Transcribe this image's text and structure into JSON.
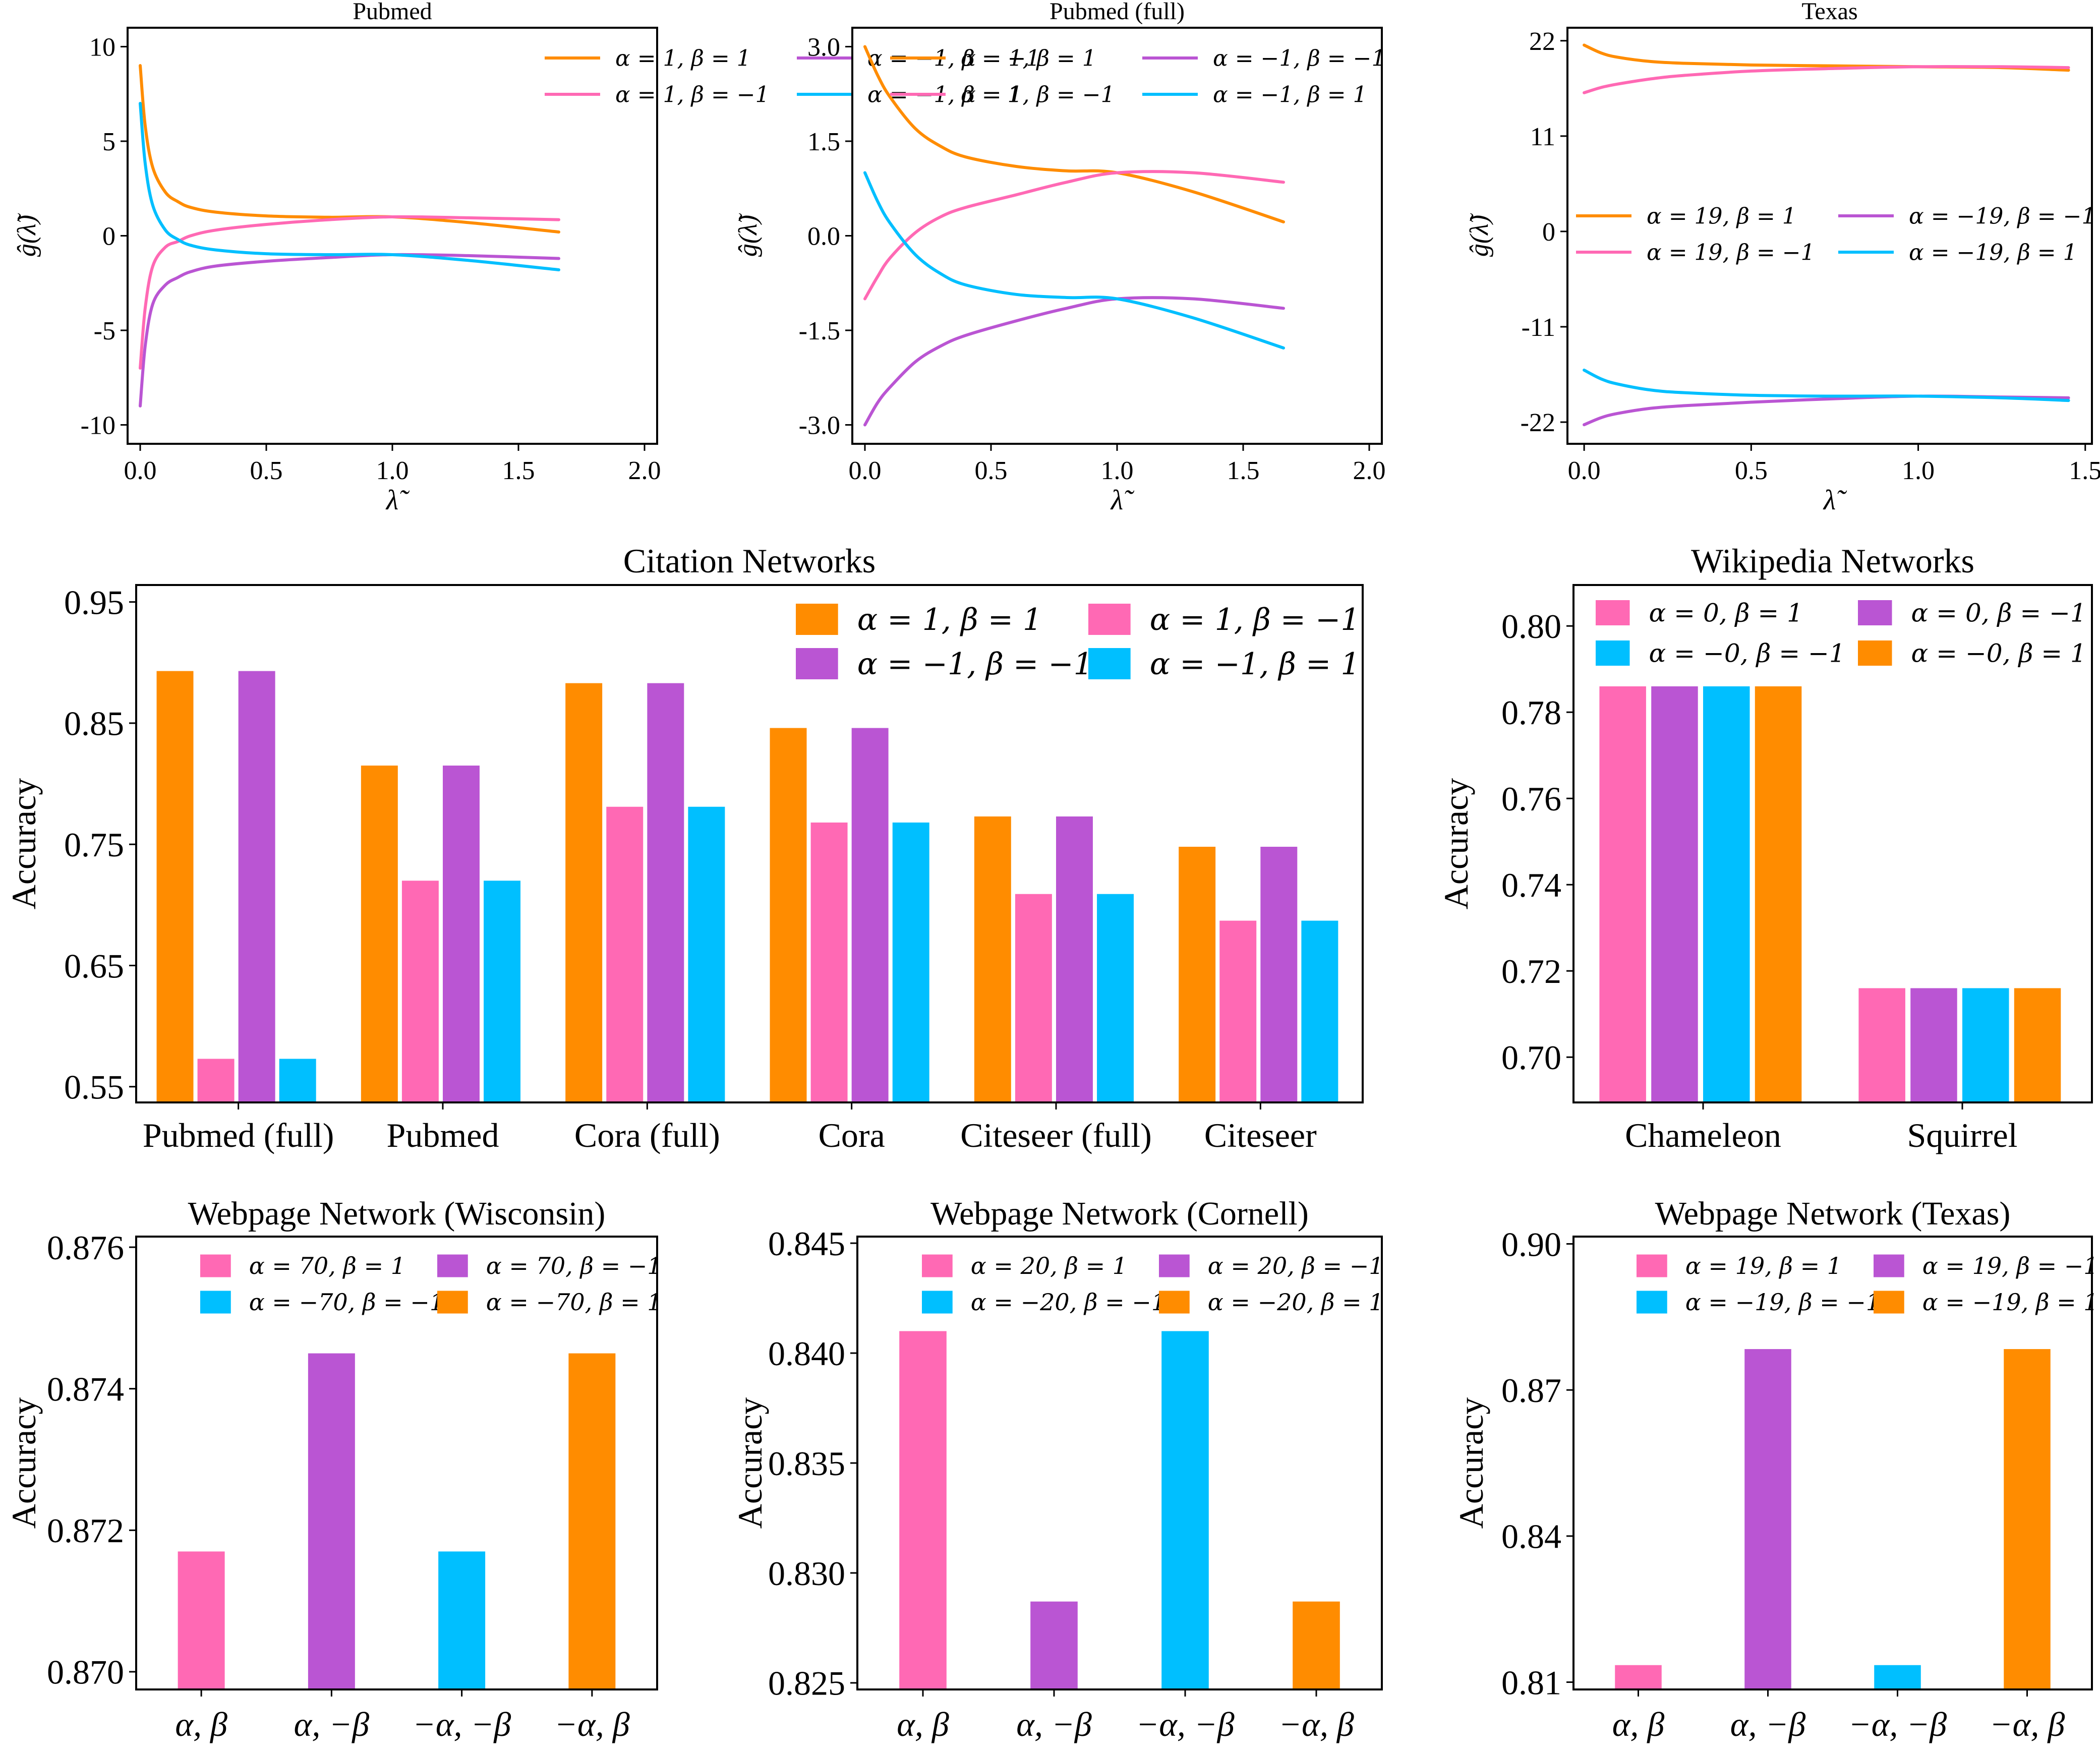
{
  "chart_data": [
    {
      "id": "pubmed-filter",
      "type": "line",
      "title": "Pubmed",
      "xlabel": "λ̃",
      "ylabel": "ĝ(λ̃)",
      "xlim": [
        -0.05,
        2.05
      ],
      "ylim": [
        -11,
        11
      ],
      "xticks": [
        0,
        0.5,
        1,
        1.5,
        2
      ],
      "xtick_labels": [
        "0.0",
        "0.5",
        "1.0",
        "1.5",
        "2.0"
      ],
      "yticks": [
        10,
        5,
        0,
        -5,
        -10
      ],
      "ytick_labels": [
        "10",
        "5",
        "0",
        "-5",
        "-10"
      ],
      "legend": "upper right, 2 columns",
      "grid": false,
      "series": [
        {
          "name": "α = 1, β = 1",
          "color": "#FF8C00",
          "x": [
            0,
            0.02,
            0.05,
            0.1,
            0.15,
            0.2,
            0.3,
            0.5,
            0.75,
            1.0,
            1.3,
            1.66
          ],
          "y": [
            9.0,
            5.8,
            3.6,
            2.3,
            1.8,
            1.5,
            1.25,
            1.05,
            0.98,
            1.0,
            0.7,
            0.2
          ]
        },
        {
          "name": "α = −1, β = −1",
          "color": "#BA55D3",
          "x": [
            0,
            0.02,
            0.05,
            0.1,
            0.15,
            0.2,
            0.3,
            0.5,
            0.75,
            1.0,
            1.3,
            1.66
          ],
          "y": [
            -9.0,
            -5.8,
            -3.6,
            -2.6,
            -2.2,
            -1.9,
            -1.6,
            -1.35,
            -1.15,
            -1.0,
            -1.05,
            -1.2
          ]
        },
        {
          "name": "α = 1, β = −1",
          "color": "#FF69B4",
          "x": [
            0,
            0.02,
            0.05,
            0.1,
            0.15,
            0.2,
            0.3,
            0.5,
            0.75,
            1.0,
            1.3,
            1.66
          ],
          "y": [
            -7.0,
            -3.8,
            -1.6,
            -0.6,
            -0.3,
            0.0,
            0.3,
            0.6,
            0.85,
            1.0,
            0.95,
            0.85
          ]
        },
        {
          "name": "α = −1, β = 1",
          "color": "#00BFFF",
          "x": [
            0,
            0.02,
            0.05,
            0.1,
            0.15,
            0.2,
            0.3,
            0.5,
            0.75,
            1.0,
            1.3,
            1.66
          ],
          "y": [
            7.0,
            3.8,
            1.6,
            0.3,
            -0.2,
            -0.5,
            -0.75,
            -0.95,
            -1.0,
            -1.0,
            -1.3,
            -1.8
          ]
        }
      ]
    },
    {
      "id": "pubmed-full-filter",
      "type": "line",
      "title": "Pubmed (full)",
      "xlabel": "λ̃",
      "ylabel": "ĝ(λ̃)",
      "xlim": [
        -0.05,
        2.05
      ],
      "ylim": [
        -3.3,
        3.3
      ],
      "xticks": [
        0,
        0.5,
        1,
        1.5,
        2
      ],
      "xtick_labels": [
        "0.0",
        "0.5",
        "1.0",
        "1.5",
        "2.0"
      ],
      "yticks": [
        3.0,
        1.5,
        0.0,
        -1.5,
        -3.0
      ],
      "ytick_labels": [
        "3.0",
        "1.5",
        "0.0",
        "-1.5",
        "-3.0"
      ],
      "legend": "upper right, 2 columns",
      "grid": false,
      "series": [
        {
          "name": "α = 1, β = 1",
          "color": "#FF8C00",
          "x": [
            0,
            0.05,
            0.1,
            0.2,
            0.3,
            0.4,
            0.6,
            0.8,
            1.0,
            1.3,
            1.66
          ],
          "y": [
            3.0,
            2.55,
            2.2,
            1.7,
            1.42,
            1.25,
            1.1,
            1.03,
            1.0,
            0.7,
            0.22
          ]
        },
        {
          "name": "α = −1, β = −1",
          "color": "#BA55D3",
          "x": [
            0,
            0.05,
            0.1,
            0.2,
            0.3,
            0.4,
            0.6,
            0.8,
            1.0,
            1.3,
            1.66
          ],
          "y": [
            -3.0,
            -2.65,
            -2.4,
            -2.0,
            -1.75,
            -1.58,
            -1.35,
            -1.15,
            -1.0,
            -1.0,
            -1.15
          ]
        },
        {
          "name": "α = 1, β = −1",
          "color": "#FF69B4",
          "x": [
            0,
            0.05,
            0.1,
            0.2,
            0.3,
            0.4,
            0.6,
            0.8,
            1.0,
            1.3,
            1.66
          ],
          "y": [
            -1.0,
            -0.65,
            -0.35,
            0.05,
            0.3,
            0.45,
            0.65,
            0.85,
            1.0,
            1.0,
            0.85
          ]
        },
        {
          "name": "α = −1, β = 1",
          "color": "#00BFFF",
          "x": [
            0,
            0.05,
            0.1,
            0.2,
            0.3,
            0.4,
            0.6,
            0.8,
            1.0,
            1.3,
            1.66
          ],
          "y": [
            1.0,
            0.55,
            0.2,
            -0.3,
            -0.6,
            -0.78,
            -0.93,
            -0.98,
            -1.0,
            -1.3,
            -1.78
          ]
        }
      ]
    },
    {
      "id": "texas-filter",
      "type": "line",
      "title": "Texas",
      "xlabel": "λ̃",
      "ylabel": "ĝ(λ̃)",
      "xlim": [
        -0.05,
        1.52
      ],
      "ylim": [
        -24.5,
        23.5
      ],
      "xticks": [
        0,
        0.5,
        1,
        1.5
      ],
      "xtick_labels": [
        "0.0",
        "0.5",
        "1.0",
        "1.5"
      ],
      "yticks": [
        22,
        11,
        0,
        -11,
        -22
      ],
      "ytick_labels": [
        "22",
        "11",
        "0",
        "-11",
        "-22"
      ],
      "legend": "center right, 2 columns",
      "grid": false,
      "series": [
        {
          "name": "α = 19, β = 1",
          "color": "#FF8C00",
          "x": [
            0,
            0.05,
            0.1,
            0.2,
            0.3,
            0.5,
            0.75,
            1.0,
            1.25,
            1.45
          ],
          "y": [
            21.5,
            20.6,
            20.1,
            19.6,
            19.4,
            19.2,
            19.1,
            19.0,
            18.9,
            18.6
          ]
        },
        {
          "name": "α = −19, β = −1",
          "color": "#BA55D3",
          "x": [
            0,
            0.05,
            0.1,
            0.2,
            0.3,
            0.5,
            0.75,
            1.0,
            1.25,
            1.45
          ],
          "y": [
            -22.3,
            -21.5,
            -21.0,
            -20.4,
            -20.1,
            -19.7,
            -19.3,
            -19.0,
            -19.1,
            -19.2
          ]
        },
        {
          "name": "α = 19, β = −1",
          "color": "#FF69B4",
          "x": [
            0,
            0.05,
            0.1,
            0.2,
            0.3,
            0.5,
            0.75,
            1.0,
            1.25,
            1.45
          ],
          "y": [
            16.0,
            16.6,
            17.0,
            17.6,
            18.0,
            18.5,
            18.8,
            19.0,
            19.0,
            18.9
          ]
        },
        {
          "name": "α = −19, β = 1",
          "color": "#00BFFF",
          "x": [
            0,
            0.05,
            0.1,
            0.2,
            0.3,
            0.5,
            0.75,
            1.0,
            1.25,
            1.45
          ],
          "y": [
            -16.0,
            -17.0,
            -17.6,
            -18.3,
            -18.6,
            -18.9,
            -19.0,
            -19.0,
            -19.2,
            -19.5
          ]
        }
      ]
    },
    {
      "id": "citation-networks",
      "type": "bar",
      "title": "Citation Networks",
      "xlabel": "",
      "ylabel": "Accuracy",
      "ylim": [
        0.537,
        0.964
      ],
      "yticks": [
        0.95,
        0.85,
        0.75,
        0.65,
        0.55
      ],
      "ytick_labels": [
        "0.95",
        "0.85",
        "0.75",
        "0.65",
        "0.55"
      ],
      "legend": "upper right, 2 columns",
      "grid": false,
      "categories": [
        "Pubmed (full)",
        "Pubmed",
        "Cora (full)",
        "Cora",
        "Citeseer (full)",
        "Citeseer"
      ],
      "series": [
        {
          "name": "α = 1, β = 1",
          "color": "#FF8C00",
          "values": [
            0.893,
            0.815,
            0.883,
            0.846,
            0.773,
            0.748
          ]
        },
        {
          "name": "α = 1, β = −1",
          "color": "#FF69B4",
          "values": [
            0.573,
            0.72,
            0.781,
            0.768,
            0.709,
            0.687
          ]
        },
        {
          "name": "α = −1, β = −1",
          "color": "#BA55D3",
          "values": [
            0.893,
            0.815,
            0.883,
            0.846,
            0.773,
            0.748
          ]
        },
        {
          "name": "α = −1, β = 1",
          "color": "#00BFFF",
          "values": [
            0.573,
            0.72,
            0.781,
            0.768,
            0.709,
            0.687
          ]
        }
      ],
      "legend_order": [
        0,
        2,
        1,
        3
      ]
    },
    {
      "id": "wikipedia-networks",
      "type": "bar",
      "title": "Wikipedia Networks",
      "xlabel": "",
      "ylabel": "Accuracy",
      "ylim": [
        0.6895,
        0.8095
      ],
      "yticks": [
        0.8,
        0.78,
        0.76,
        0.74,
        0.72,
        0.7
      ],
      "ytick_labels": [
        "0.80",
        "0.78",
        "0.76",
        "0.74",
        "0.72",
        "0.70"
      ],
      "legend": "upper right, 2 columns",
      "grid": false,
      "categories": [
        "Chameleon",
        "Squirrel"
      ],
      "series": [
        {
          "name": "α = 0, β = 1",
          "color": "#FF69B4",
          "values": [
            0.786,
            0.716
          ]
        },
        {
          "name": "α = 0, β = −1",
          "color": "#BA55D3",
          "values": [
            0.786,
            0.716
          ]
        },
        {
          "name": "α = −0, β = −1",
          "color": "#00BFFF",
          "values": [
            0.786,
            0.716
          ]
        },
        {
          "name": "α = −0, β = 1",
          "color": "#FF8C00",
          "values": [
            0.786,
            0.716
          ]
        }
      ],
      "legend_order": [
        0,
        2,
        1,
        3
      ]
    },
    {
      "id": "webpage-wisconsin",
      "type": "bar",
      "title": "Webpage Network (Wisconsin)",
      "xlabel": "",
      "ylabel": "Accuracy",
      "ylim": [
        0.86975,
        0.87615
      ],
      "yticks": [
        0.876,
        0.874,
        0.872,
        0.87
      ],
      "ytick_labels": [
        "0.876",
        "0.874",
        "0.872",
        "0.870"
      ],
      "legend": "upper right, 2 columns",
      "grid": false,
      "categories": [
        "α, β",
        "α, −β",
        "−α, −β",
        "−α, β"
      ],
      "colors": [
        "#FF69B4",
        "#BA55D3",
        "#00BFFF",
        "#FF8C00"
      ],
      "values": [
        0.8717,
        0.8745,
        0.8717,
        0.8745
      ],
      "legend_entries": [
        "α = 70, β = 1",
        "α = −70, β = −1",
        "α = 70, β = −1",
        "α = −70, β = 1"
      ],
      "legend_colors": [
        "#FF69B4",
        "#00BFFF",
        "#BA55D3",
        "#FF8C00"
      ]
    },
    {
      "id": "webpage-cornell",
      "type": "bar",
      "title": "Webpage Network (Cornell)",
      "xlabel": "",
      "ylabel": "Accuracy",
      "ylim": [
        0.8247,
        0.8453
      ],
      "yticks": [
        0.845,
        0.84,
        0.835,
        0.83,
        0.825
      ],
      "ytick_labels": [
        "0.845",
        "0.840",
        "0.835",
        "0.830",
        "0.825"
      ],
      "legend": "upper right, 2 columns",
      "grid": false,
      "categories": [
        "α, β",
        "α, −β",
        "−α, −β",
        "−α, β"
      ],
      "colors": [
        "#FF69B4",
        "#BA55D3",
        "#00BFFF",
        "#FF8C00"
      ],
      "values": [
        0.841,
        0.8287,
        0.841,
        0.8287
      ],
      "legend_entries": [
        "α = 20, β = 1",
        "α = −20, β = −1",
        "α = 20, β = −1",
        "α = −20, β = 1"
      ],
      "legend_colors": [
        "#FF69B4",
        "#00BFFF",
        "#BA55D3",
        "#FF8C00"
      ]
    },
    {
      "id": "webpage-texas",
      "type": "bar",
      "title": "Webpage Network (Texas)",
      "xlabel": "",
      "ylabel": "Accuracy",
      "ylim": [
        0.8085,
        0.9015
      ],
      "yticks": [
        0.9,
        0.87,
        0.84,
        0.81
      ],
      "ytick_labels": [
        "0.90",
        "0.87",
        "0.84",
        "0.81"
      ],
      "legend": "upper right, 2 columns",
      "grid": false,
      "categories": [
        "α, β",
        "α, −β",
        "−α, −β",
        "−α, β"
      ],
      "colors": [
        "#FF69B4",
        "#BA55D3",
        "#00BFFF",
        "#FF8C00"
      ],
      "values": [
        0.8135,
        0.8784,
        0.8135,
        0.8784
      ],
      "legend_entries": [
        "α = 19, β = 1",
        "α = −19, β = −1",
        "α = 19, β = −1",
        "α = −19, β = 1"
      ],
      "legend_colors": [
        "#FF69B4",
        "#00BFFF",
        "#BA55D3",
        "#FF8C00"
      ]
    }
  ]
}
